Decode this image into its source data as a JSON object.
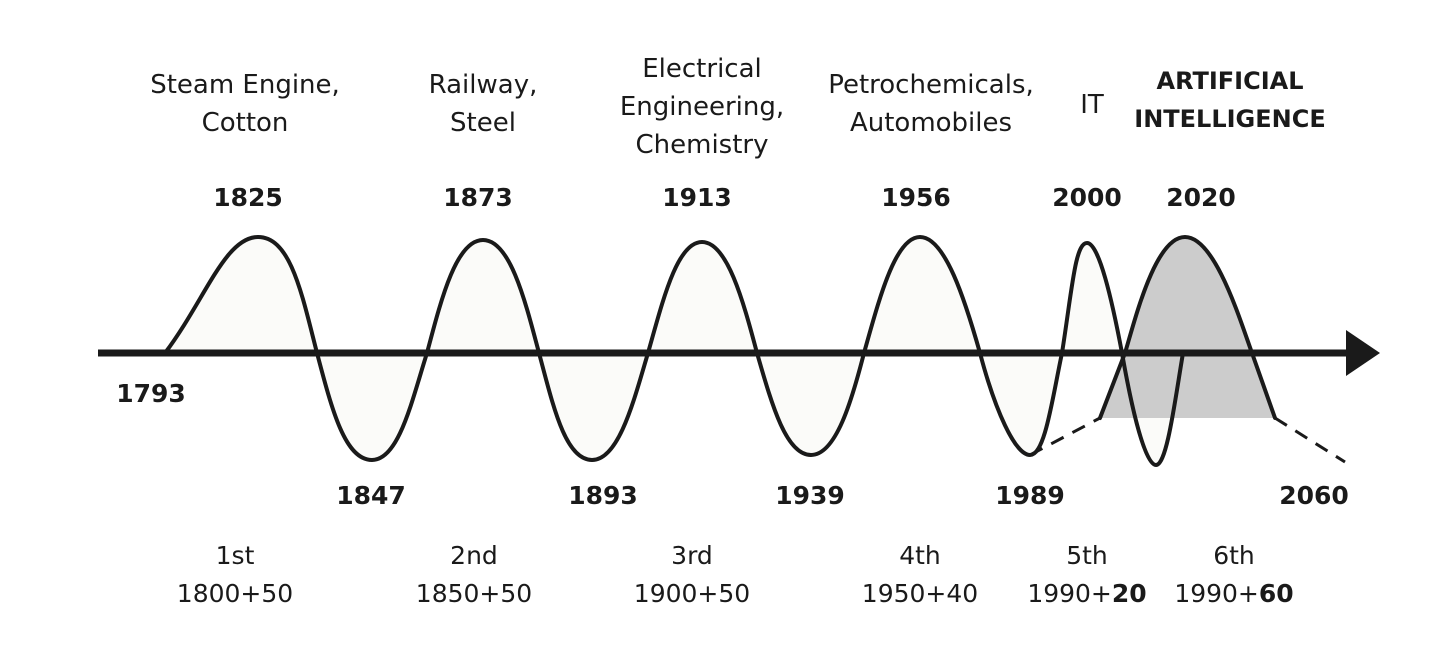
{
  "waves": [
    {
      "tech_lines": [
        "Steam Engine,",
        "Cotton"
      ],
      "peak_year": "1825",
      "ordinal": "1st",
      "span": "1800+50",
      "tech_bold": false
    },
    {
      "tech_lines": [
        "Railway,",
        "Steel"
      ],
      "peak_year": "1873",
      "ordinal": "2nd",
      "span": "1850+50",
      "tech_bold": false
    },
    {
      "tech_lines": [
        "Electrical",
        "Engineering,",
        "Chemistry"
      ],
      "peak_year": "1913",
      "ordinal": "3rd",
      "span": "1900+50",
      "tech_bold": false
    },
    {
      "tech_lines": [
        "Petrochemicals,",
        "Automobiles"
      ],
      "peak_year": "1956",
      "ordinal": "4th",
      "span": "1950+40",
      "tech_bold": false
    },
    {
      "tech_lines": [
        "IT"
      ],
      "peak_year": "2000",
      "ordinal": "5th",
      "span_prefix": "1990+",
      "span_bold": "20",
      "tech_bold": false
    },
    {
      "tech_lines": [
        "ARTIFICIAL",
        "INTELLIGENCE"
      ],
      "peak_year": "2020",
      "ordinal": "6th",
      "span_prefix": "1990+",
      "span_bold": "60",
      "tech_bold": true
    }
  ],
  "start_year": "1793",
  "trough_years": [
    "1847",
    "1893",
    "1939",
    "1989"
  ],
  "end_year": "2060",
  "colors": {
    "line": "#1a1a1a",
    "wave_fill": "#fbfbf9",
    "ai_fill": "#cccccc"
  }
}
